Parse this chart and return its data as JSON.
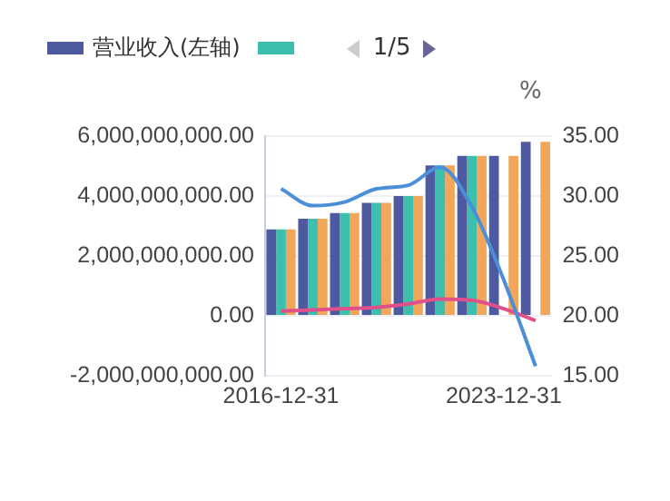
{
  "chart_data": {
    "type": "bar",
    "y2label": "%",
    "annotations": [
      "1/5"
    ],
    "categories": [
      "2016-12-31",
      null,
      null,
      null,
      null,
      null,
      null,
      "2023-12-31",
      null
    ],
    "series": [
      {
        "name": "营业收入(左轴)",
        "color": "#4e5aa0",
        "values": [
          2890000000.0,
          3240000000.0,
          3430000000.0,
          3770000000.0,
          4000000000.0,
          5020000000.0,
          5340000000.0,
          5340000000.0,
          5810000000.0
        ]
      },
      {
        "color": "#3dbfae",
        "values": [
          2890000000.0,
          3240000000.0,
          3430000000.0,
          3770000000.0,
          4000000000.0,
          5020000000.0,
          5340000000.0,
          null,
          null
        ]
      },
      {
        "color": "#f2a65a",
        "values": [
          2890000000.0,
          3240000000.0,
          3430000000.0,
          3770000000.0,
          4000000000.0,
          5020000000.0,
          5340000000.0,
          5340000000.0,
          5810000000.0
        ]
      },
      {
        "type": "line",
        "axis": "y2",
        "color": "#4a8fd8",
        "values": [
          30.6,
          29.2,
          29.5,
          30.6,
          30.9,
          32.4,
          29.1,
          23.0,
          15.8
        ]
      },
      {
        "type": "line",
        "axis": "y2",
        "color": "#e0508a",
        "values": [
          20.4,
          20.5,
          20.6,
          20.7,
          21.0,
          21.4,
          21.3,
          20.6,
          19.6
        ]
      }
    ],
    "ylim": [
      -2000000000,
      6000000000
    ],
    "yticks": [
      {
        "value": -2000000000,
        "label": "-2,000,000,000.00"
      },
      {
        "value": 0,
        "label": "0.00"
      },
      {
        "value": 2000000000,
        "label": "2,000,000,000.00"
      },
      {
        "value": 4000000000,
        "label": "4,000,000,000.00"
      },
      {
        "value": 6000000000,
        "label": "6,000,000,000.00"
      }
    ],
    "y2lim": [
      15,
      35
    ],
    "y2ticks": [
      {
        "value": 15,
        "label": "15.00"
      },
      {
        "value": 20,
        "label": "20.00"
      },
      {
        "value": 25,
        "label": "25.00"
      },
      {
        "value": 30,
        "label": "30.00"
      },
      {
        "value": 35,
        "label": "35.00"
      }
    ],
    "grid": "y",
    "legend": "top",
    "marker": "none"
  }
}
